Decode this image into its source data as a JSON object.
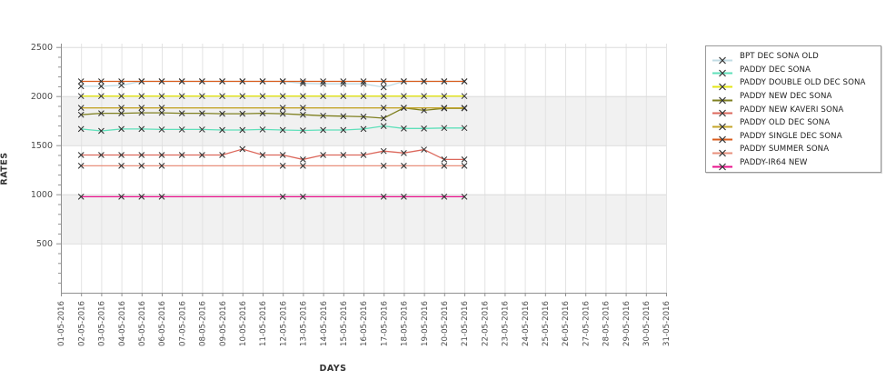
{
  "page": {
    "background": "#ffffff"
  },
  "chart_data": {
    "type": "line",
    "title": "",
    "xlabel": "DAYS",
    "ylabel": "RATES",
    "x_categories": [
      "01-05-2016",
      "02-05-2016",
      "03-05-2016",
      "04-05-2016",
      "05-05-2016",
      "06-05-2016",
      "07-05-2016",
      "08-05-2016",
      "09-05-2016",
      "10-05-2016",
      "11-05-2016",
      "12-05-2016",
      "13-05-2016",
      "14-05-2016",
      "15-05-2016",
      "16-05-2016",
      "17-05-2016",
      "18-05-2016",
      "19-05-2016",
      "20-05-2016",
      "21-05-2016",
      "22-05-2016",
      "23-05-2016",
      "24-05-2016",
      "25-05-2016",
      "26-05-2016",
      "27-05-2016",
      "28-05-2016",
      "29-05-2016",
      "30-05-2016",
      "31-05-2016"
    ],
    "y_ticks": [
      500,
      1000,
      1500,
      2000,
      2500
    ],
    "y_minor_step": 100,
    "ylim": [
      0,
      2500
    ],
    "grid": true,
    "legend_position": "right",
    "shaded_bands": [
      [
        500,
        1000
      ],
      [
        1500,
        2000
      ]
    ],
    "marker": "x",
    "marker_color": "#2b2b2b",
    "series": [
      {
        "name": "BPT DEC SONA OLD",
        "color": "#c2dce4",
        "x": [
          1,
          2,
          3,
          4,
          5,
          6,
          7,
          8,
          9,
          10,
          11,
          12,
          13,
          14,
          15,
          16,
          17,
          18,
          19,
          20
        ],
        "values": [
          2100,
          2100,
          2110,
          2150,
          2150,
          2150,
          2150,
          2150,
          2150,
          2150,
          2150,
          2130,
          2125,
          2125,
          2125,
          2090,
          2150,
          2150,
          2150,
          2150
        ]
      },
      {
        "name": "PADDY DEC SONA",
        "color": "#5fe0ba",
        "x": [
          1,
          2,
          3,
          4,
          5,
          6,
          7,
          8,
          9,
          10,
          11,
          12,
          13,
          14,
          15,
          16,
          17,
          18,
          19,
          20
        ],
        "values": [
          1665,
          1645,
          1665,
          1665,
          1660,
          1660,
          1660,
          1655,
          1655,
          1660,
          1655,
          1650,
          1655,
          1655,
          1665,
          1695,
          1670,
          1670,
          1675,
          1675
        ]
      },
      {
        "name": "PADDY DOUBLE OLD DEC SONA",
        "color": "#e3e515",
        "x": [
          1,
          2,
          3,
          4,
          5,
          6,
          7,
          8,
          9,
          10,
          11,
          12,
          13,
          14,
          15,
          16,
          17,
          18,
          19,
          20
        ],
        "values": [
          2000,
          2000,
          2000,
          2000,
          2000,
          2000,
          2000,
          2000,
          2000,
          2000,
          2000,
          2000,
          2000,
          2000,
          2000,
          2000,
          2000,
          2000,
          2000,
          2000
        ]
      },
      {
        "name": "PADDY NEW DEC SONA",
        "color": "#7f8020",
        "x": [
          1,
          2,
          3,
          4,
          5,
          6,
          7,
          8,
          9,
          10,
          11,
          12,
          13,
          14,
          15,
          16,
          17,
          18,
          19,
          20
        ],
        "values": [
          1810,
          1825,
          1825,
          1830,
          1830,
          1825,
          1825,
          1820,
          1820,
          1825,
          1820,
          1810,
          1800,
          1795,
          1790,
          1775,
          1880,
          1855,
          1875,
          1875
        ]
      },
      {
        "name": "PADDY NEW KAVERI SONA",
        "color": "#dc685c",
        "x": [
          1,
          2,
          3,
          4,
          5,
          6,
          7,
          8,
          9,
          10,
          11,
          12,
          13,
          14,
          15,
          16,
          17,
          18,
          19,
          20
        ],
        "values": [
          1400,
          1400,
          1400,
          1400,
          1400,
          1400,
          1400,
          1400,
          1460,
          1400,
          1400,
          1355,
          1400,
          1400,
          1400,
          1440,
          1420,
          1455,
          1355,
          1355
        ]
      },
      {
        "name": "PADDY OLD DEC SONA",
        "color": "#c4a52a",
        "x": [
          1,
          3,
          4,
          5,
          11,
          12,
          16,
          17,
          19,
          20
        ],
        "values": [
          1880,
          1880,
          1880,
          1880,
          1880,
          1880,
          1880,
          1880,
          1880,
          1880
        ]
      },
      {
        "name": "PADDY SINGLE DEC SONA",
        "color": "#d85c1c",
        "x": [
          1,
          2,
          3,
          4,
          5,
          6,
          7,
          8,
          9,
          10,
          11,
          12,
          13,
          14,
          15,
          16,
          17,
          18,
          19,
          20
        ],
        "values": [
          2150,
          2150,
          2150,
          2150,
          2150,
          2150,
          2150,
          2150,
          2150,
          2150,
          2150,
          2150,
          2150,
          2150,
          2150,
          2150,
          2150,
          2150,
          2150,
          2150
        ]
      },
      {
        "name": "PADDY SUMMER SONA",
        "color": "#e8907c",
        "x": [
          1,
          3,
          4,
          5,
          11,
          12,
          16,
          17,
          19,
          20
        ],
        "values": [
          1290,
          1290,
          1290,
          1290,
          1290,
          1290,
          1290,
          1290,
          1290,
          1290
        ]
      },
      {
        "name": "PADDY-IR64 NEW",
        "color": "#e8138c",
        "x": [
          1,
          3,
          4,
          5,
          11,
          12,
          16,
          17,
          19,
          20
        ],
        "values": [
          975,
          975,
          975,
          975,
          975,
          975,
          975,
          975,
          975,
          975
        ]
      }
    ]
  }
}
